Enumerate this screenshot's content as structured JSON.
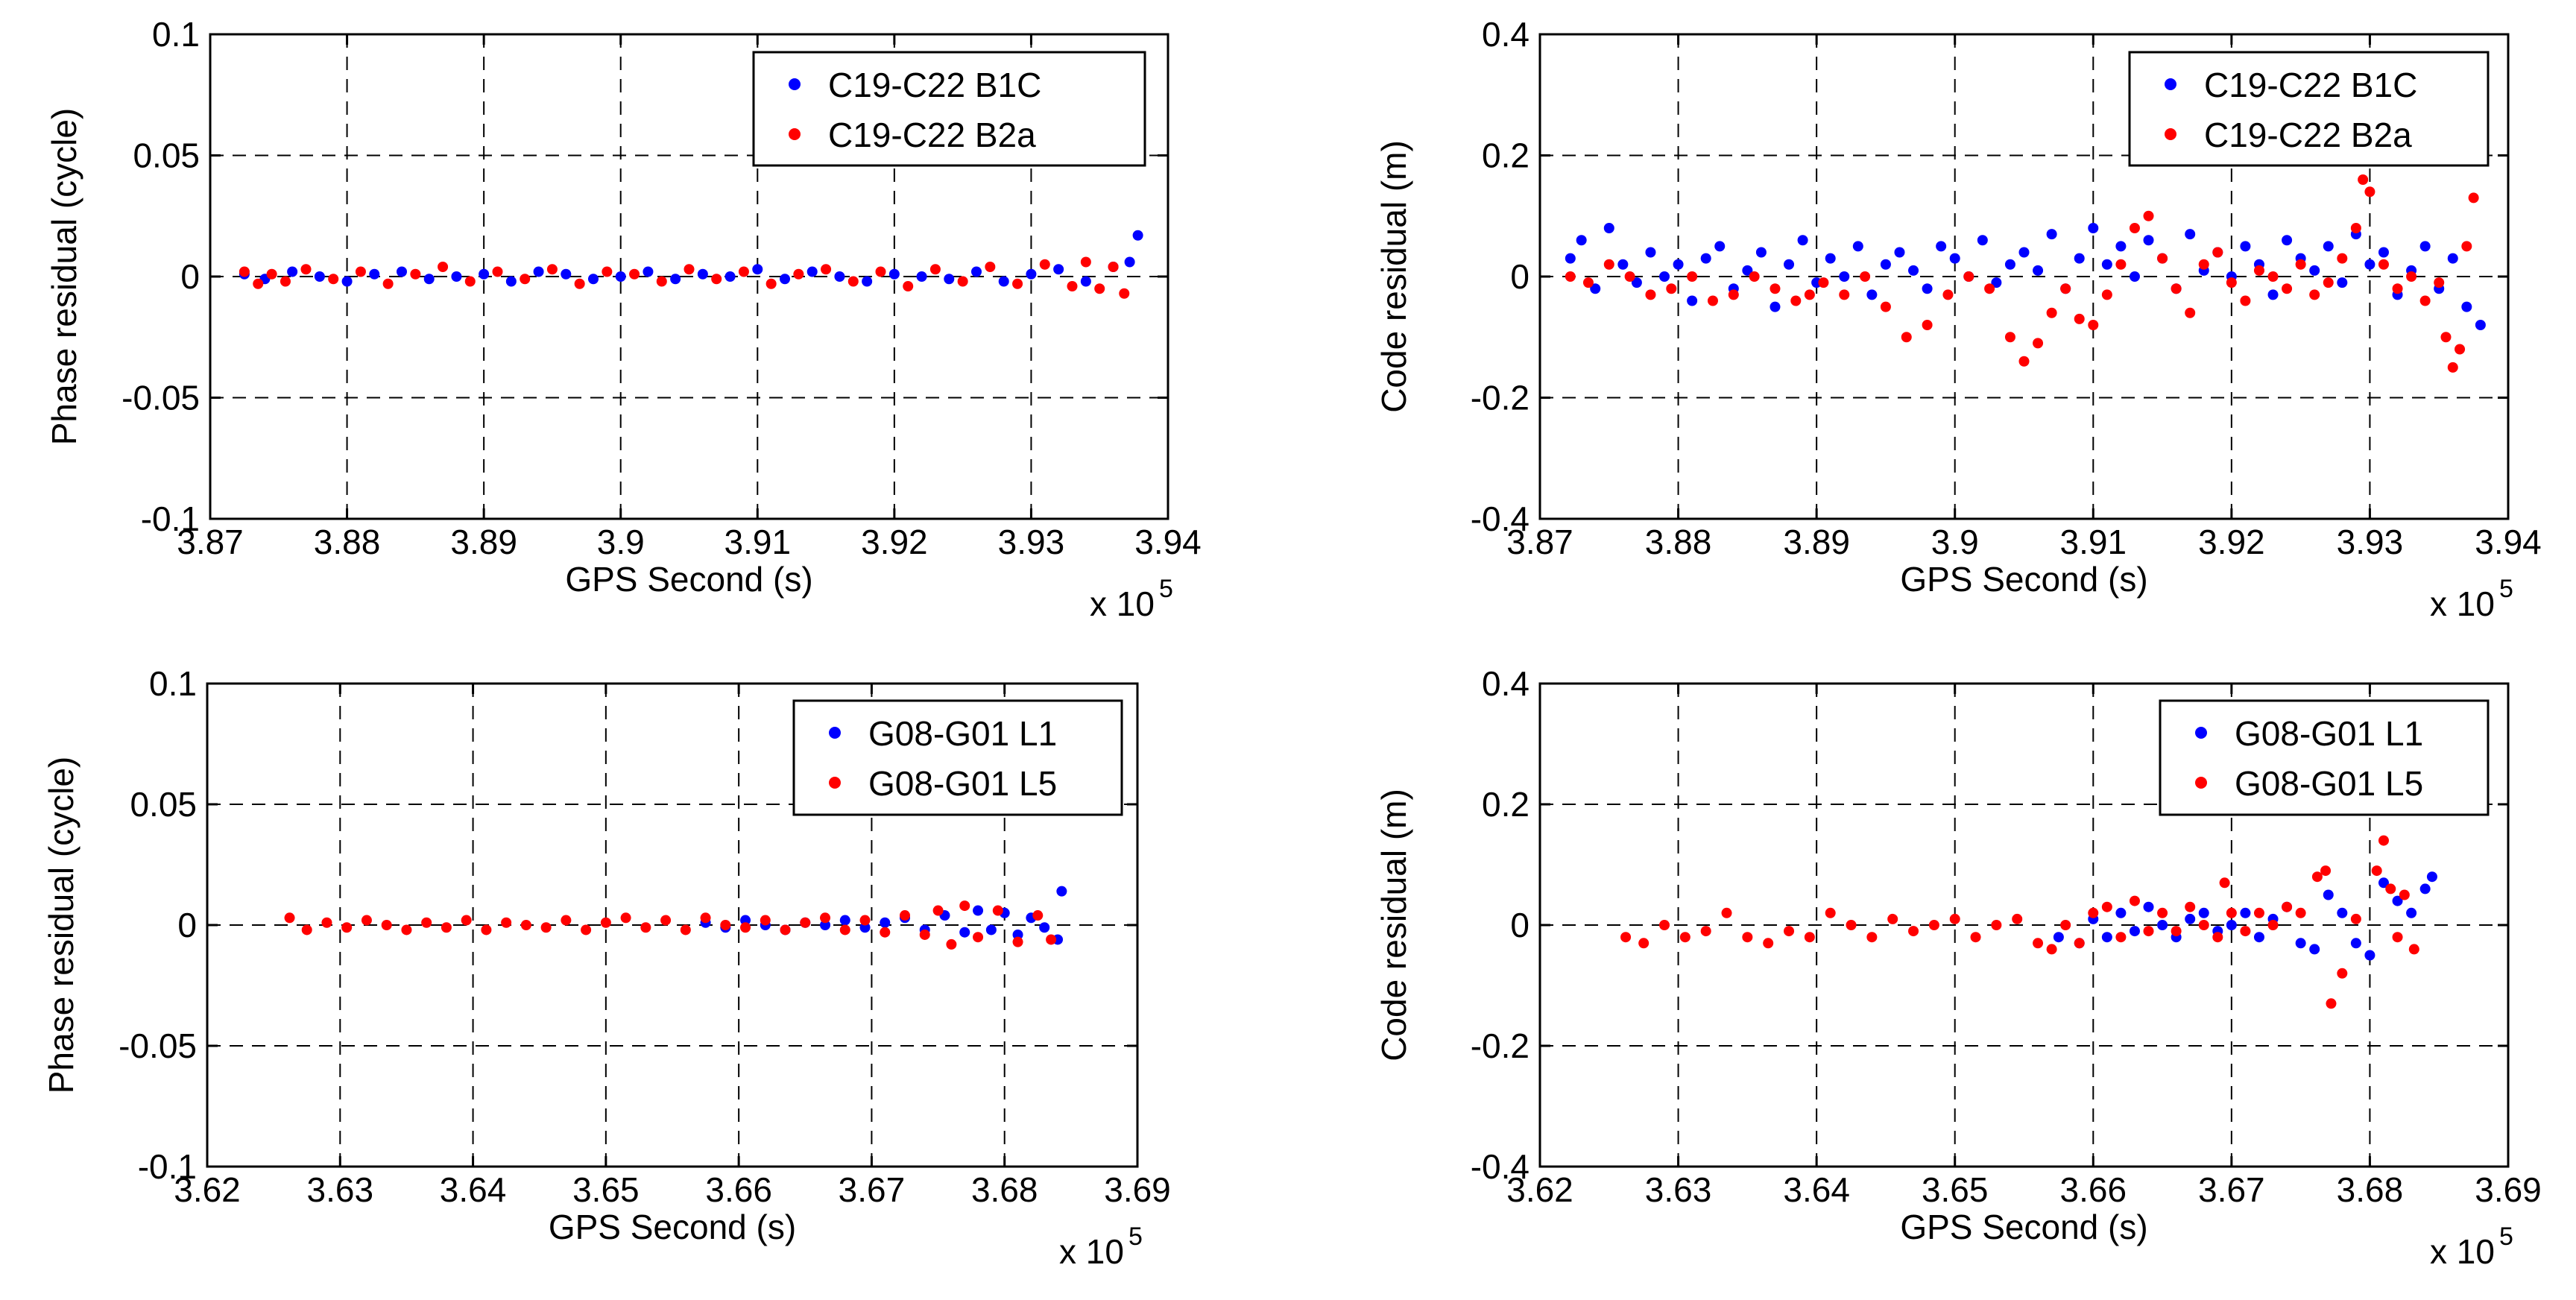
{
  "colors": {
    "series1": "#0000ff",
    "series2": "#ff0000",
    "axis": "#000000",
    "grid": "#000000",
    "background": "#ffffff"
  },
  "chart_data": [
    {
      "type": "scatter",
      "title": "",
      "xlabel": "GPS Second (s)",
      "ylabel": "Phase residual (cycle)",
      "xlim": [
        3.87,
        3.94
      ],
      "ylim": [
        -0.1,
        0.1
      ],
      "x_ticks": [
        3.87,
        3.88,
        3.89,
        3.9,
        3.91,
        3.92,
        3.93,
        3.94
      ],
      "x_tick_labels": [
        "3.87",
        "3.88",
        "3.89",
        "3.9",
        "3.91",
        "3.92",
        "3.93",
        "3.94"
      ],
      "y_ticks": [
        -0.1,
        -0.05,
        0,
        0.05,
        0.1
      ],
      "y_tick_labels": [
        "-0.1",
        "-0.05",
        "0",
        "0.05",
        "0.1"
      ],
      "x_multiplier": "x 10",
      "x_exponent": "5",
      "grid": true,
      "legend_position": "top-right",
      "series": [
        {
          "name": "C19-C22 B1C",
          "color": "#0000ff",
          "x": [
            3.8725,
            3.874,
            3.876,
            3.878,
            3.88,
            3.882,
            3.884,
            3.886,
            3.888,
            3.89,
            3.892,
            3.894,
            3.896,
            3.898,
            3.9,
            3.902,
            3.904,
            3.906,
            3.908,
            3.91,
            3.912,
            3.914,
            3.916,
            3.918,
            3.92,
            3.922,
            3.924,
            3.926,
            3.928,
            3.93,
            3.932,
            3.934,
            3.936,
            3.9372,
            3.9378
          ],
          "y": [
            0.001,
            -0.001,
            0.002,
            0.0,
            -0.002,
            0.001,
            0.002,
            -0.001,
            0.0,
            0.001,
            -0.002,
            0.002,
            0.001,
            -0.001,
            0.0,
            0.002,
            -0.001,
            0.001,
            0.0,
            0.003,
            -0.001,
            0.002,
            0.0,
            -0.002,
            0.001,
            0.0,
            -0.001,
            0.002,
            -0.002,
            0.001,
            0.003,
            -0.002,
            0.004,
            0.006,
            0.017
          ]
        },
        {
          "name": "C19-C22 B2a",
          "color": "#ff0000",
          "x": [
            3.8725,
            3.8735,
            3.8745,
            3.8755,
            3.877,
            3.879,
            3.881,
            3.883,
            3.885,
            3.887,
            3.889,
            3.891,
            3.893,
            3.895,
            3.897,
            3.899,
            3.901,
            3.903,
            3.905,
            3.907,
            3.909,
            3.911,
            3.913,
            3.915,
            3.917,
            3.919,
            3.921,
            3.923,
            3.925,
            3.927,
            3.929,
            3.931,
            3.933,
            3.934,
            3.935,
            3.936,
            3.9368
          ],
          "y": [
            0.002,
            -0.003,
            0.001,
            -0.002,
            0.003,
            -0.001,
            0.002,
            -0.003,
            0.001,
            0.004,
            -0.002,
            0.002,
            -0.001,
            0.003,
            -0.003,
            0.002,
            0.001,
            -0.002,
            0.003,
            -0.001,
            0.002,
            -0.003,
            0.001,
            0.003,
            -0.002,
            0.002,
            -0.004,
            0.003,
            -0.002,
            0.004,
            -0.003,
            0.005,
            -0.004,
            0.006,
            -0.005,
            0.004,
            -0.007
          ]
        }
      ]
    },
    {
      "type": "scatter",
      "title": "",
      "xlabel": "GPS Second (s)",
      "ylabel": "Code residual (m)",
      "xlim": [
        3.87,
        3.94
      ],
      "ylim": [
        -0.4,
        0.4
      ],
      "x_ticks": [
        3.87,
        3.88,
        3.89,
        3.9,
        3.91,
        3.92,
        3.93,
        3.94
      ],
      "x_tick_labels": [
        "3.87",
        "3.88",
        "3.89",
        "3.9",
        "3.91",
        "3.92",
        "3.93",
        "3.94"
      ],
      "y_ticks": [
        -0.4,
        -0.2,
        0,
        0.2,
        0.4
      ],
      "y_tick_labels": [
        "-0.4",
        "-0.2",
        "0",
        "0.2",
        "0.4"
      ],
      "x_multiplier": "x 10",
      "x_exponent": "5",
      "grid": true,
      "legend_position": "top-right",
      "series": [
        {
          "name": "C19-C22 B1C",
          "color": "#0000ff",
          "x": [
            3.8722,
            3.873,
            3.874,
            3.875,
            3.876,
            3.877,
            3.878,
            3.879,
            3.88,
            3.881,
            3.882,
            3.883,
            3.884,
            3.885,
            3.886,
            3.887,
            3.888,
            3.889,
            3.89,
            3.891,
            3.892,
            3.893,
            3.894,
            3.895,
            3.896,
            3.897,
            3.898,
            3.899,
            3.9,
            3.901,
            3.902,
            3.903,
            3.904,
            3.905,
            3.906,
            3.907,
            3.908,
            3.909,
            3.91,
            3.911,
            3.912,
            3.913,
            3.914,
            3.915,
            3.916,
            3.917,
            3.918,
            3.919,
            3.92,
            3.921,
            3.922,
            3.923,
            3.924,
            3.925,
            3.926,
            3.927,
            3.928,
            3.929,
            3.93,
            3.931,
            3.932,
            3.933,
            3.934,
            3.935,
            3.936,
            3.937,
            3.938
          ],
          "y": [
            0.03,
            0.06,
            -0.02,
            0.08,
            0.02,
            -0.01,
            0.04,
            0.0,
            0.02,
            -0.04,
            0.03,
            0.05,
            -0.02,
            0.01,
            0.04,
            -0.05,
            0.02,
            0.06,
            -0.01,
            0.03,
            0.0,
            0.05,
            -0.03,
            0.02,
            0.04,
            0.01,
            -0.02,
            0.05,
            0.03,
            0.0,
            0.06,
            -0.01,
            0.02,
            0.04,
            0.01,
            0.07,
            -0.02,
            0.03,
            0.08,
            0.02,
            0.05,
            0.0,
            0.06,
            0.03,
            -0.02,
            0.07,
            0.01,
            0.04,
            0.0,
            0.05,
            0.02,
            -0.03,
            0.06,
            0.03,
            0.01,
            0.05,
            -0.01,
            0.07,
            0.02,
            0.04,
            -0.03,
            0.01,
            0.05,
            -0.02,
            0.03,
            -0.05,
            -0.08
          ]
        },
        {
          "name": "C19-C22 B2a",
          "color": "#ff0000",
          "x": [
            3.8722,
            3.8735,
            3.875,
            3.8765,
            3.878,
            3.8795,
            3.881,
            3.8825,
            3.884,
            3.8855,
            3.887,
            3.8885,
            3.8895,
            3.8905,
            3.892,
            3.8935,
            3.895,
            3.8965,
            3.898,
            3.8995,
            3.901,
            3.9025,
            3.904,
            3.905,
            3.906,
            3.907,
            3.908,
            3.909,
            3.91,
            3.911,
            3.912,
            3.913,
            3.914,
            3.915,
            3.916,
            3.917,
            3.918,
            3.919,
            3.92,
            3.921,
            3.922,
            3.923,
            3.924,
            3.925,
            3.926,
            3.927,
            3.928,
            3.929,
            3.9295,
            3.93,
            3.931,
            3.932,
            3.933,
            3.934,
            3.935,
            3.9355,
            3.936,
            3.9365,
            3.937,
            3.9375
          ],
          "y": [
            0.0,
            -0.01,
            0.02,
            0.0,
            -0.03,
            -0.02,
            0.0,
            -0.04,
            -0.03,
            0.0,
            -0.02,
            -0.04,
            -0.03,
            -0.01,
            -0.03,
            0.0,
            -0.05,
            -0.1,
            -0.08,
            -0.03,
            0.0,
            -0.02,
            -0.1,
            -0.14,
            -0.11,
            -0.06,
            -0.02,
            -0.07,
            -0.08,
            -0.03,
            0.02,
            0.08,
            0.1,
            0.03,
            -0.02,
            -0.06,
            0.02,
            0.04,
            -0.01,
            -0.04,
            0.01,
            0.0,
            -0.02,
            0.02,
            -0.03,
            -0.01,
            0.03,
            0.08,
            0.16,
            0.14,
            0.02,
            -0.02,
            0.0,
            -0.04,
            -0.01,
            -0.1,
            -0.15,
            -0.12,
            0.05,
            0.13
          ]
        }
      ]
    },
    {
      "type": "scatter",
      "title": "",
      "xlabel": "GPS Second (s)",
      "ylabel": "Phase residual (cycle)",
      "xlim": [
        3.62,
        3.69
      ],
      "ylim": [
        -0.1,
        0.1
      ],
      "x_ticks": [
        3.62,
        3.63,
        3.64,
        3.65,
        3.66,
        3.67,
        3.68,
        3.69
      ],
      "x_tick_labels": [
        "3.62",
        "3.63",
        "3.64",
        "3.65",
        "3.66",
        "3.67",
        "3.68",
        "3.69"
      ],
      "y_ticks": [
        -0.1,
        -0.05,
        0,
        0.05,
        0.1
      ],
      "y_tick_labels": [
        "-0.1",
        "-0.05",
        "0",
        "0.05",
        "0.1"
      ],
      "x_multiplier": "x 10",
      "x_exponent": "5",
      "grid": true,
      "legend_position": "top-right",
      "series": [
        {
          "name": "G08-G01 L1",
          "color": "#0000ff",
          "x": [
            3.6575,
            3.659,
            3.6605,
            3.662,
            3.6635,
            3.665,
            3.6665,
            3.668,
            3.6695,
            3.671,
            3.6725,
            3.674,
            3.6755,
            3.677,
            3.678,
            3.679,
            3.68,
            3.681,
            3.682,
            3.683,
            3.684,
            3.6843
          ],
          "y": [
            0.001,
            -0.001,
            0.002,
            0.0,
            -0.002,
            0.001,
            0.0,
            0.002,
            -0.001,
            0.001,
            0.003,
            -0.002,
            0.004,
            -0.003,
            0.006,
            -0.002,
            0.005,
            -0.004,
            0.003,
            -0.001,
            -0.006,
            0.014
          ]
        },
        {
          "name": "G08-G01 L5",
          "color": "#ff0000",
          "x": [
            3.6262,
            3.6275,
            3.629,
            3.6305,
            3.632,
            3.6335,
            3.635,
            3.6365,
            3.638,
            3.6395,
            3.641,
            3.6425,
            3.644,
            3.6455,
            3.647,
            3.6485,
            3.65,
            3.6515,
            3.653,
            3.6545,
            3.656,
            3.6575,
            3.659,
            3.6605,
            3.662,
            3.6635,
            3.665,
            3.6665,
            3.668,
            3.6695,
            3.671,
            3.6725,
            3.674,
            3.675,
            3.676,
            3.677,
            3.678,
            3.6795,
            3.681,
            3.6825,
            3.6835
          ],
          "y": [
            0.003,
            -0.002,
            0.001,
            -0.001,
            0.002,
            0.0,
            -0.002,
            0.001,
            -0.001,
            0.002,
            -0.002,
            0.001,
            0.0,
            -0.001,
            0.002,
            -0.002,
            0.001,
            0.003,
            -0.001,
            0.002,
            -0.002,
            0.003,
            0.0,
            -0.001,
            0.002,
            -0.002,
            0.001,
            0.003,
            -0.002,
            0.002,
            -0.003,
            0.004,
            -0.004,
            0.006,
            -0.008,
            0.008,
            -0.005,
            0.006,
            -0.007,
            0.004,
            -0.006
          ]
        }
      ]
    },
    {
      "type": "scatter",
      "title": "",
      "xlabel": "GPS Second (s)",
      "ylabel": "Code residual (m)",
      "xlim": [
        3.62,
        3.69
      ],
      "ylim": [
        -0.4,
        0.4
      ],
      "x_ticks": [
        3.62,
        3.63,
        3.64,
        3.65,
        3.66,
        3.67,
        3.68,
        3.69
      ],
      "x_tick_labels": [
        "3.62",
        "3.63",
        "3.64",
        "3.65",
        "3.66",
        "3.67",
        "3.68",
        "3.69"
      ],
      "y_ticks": [
        -0.4,
        -0.2,
        0,
        0.2,
        0.4
      ],
      "y_tick_labels": [
        "-0.4",
        "-0.2",
        "0",
        "0.2",
        "0.4"
      ],
      "x_multiplier": "x 10",
      "x_exponent": "5",
      "grid": true,
      "legend_position": "top-right",
      "series": [
        {
          "name": "G08-G01 L1",
          "color": "#0000ff",
          "x": [
            3.6575,
            3.659,
            3.66,
            3.661,
            3.662,
            3.663,
            3.664,
            3.665,
            3.666,
            3.667,
            3.668,
            3.669,
            3.67,
            3.671,
            3.672,
            3.673,
            3.674,
            3.675,
            3.676,
            3.677,
            3.678,
            3.679,
            3.68,
            3.681,
            3.682,
            3.683,
            3.684,
            3.6845
          ],
          "y": [
            -0.02,
            -0.03,
            0.01,
            -0.02,
            0.02,
            -0.01,
            0.03,
            0.0,
            -0.02,
            0.01,
            0.02,
            -0.01,
            0.0,
            0.02,
            -0.02,
            0.01,
            0.03,
            -0.03,
            -0.04,
            0.05,
            0.02,
            -0.03,
            -0.05,
            0.07,
            0.04,
            0.02,
            0.06,
            0.08
          ]
        },
        {
          "name": "G08-G01 L5",
          "color": "#ff0000",
          "x": [
            3.6262,
            3.6275,
            3.629,
            3.6305,
            3.632,
            3.6335,
            3.635,
            3.6365,
            3.638,
            3.6395,
            3.641,
            3.6425,
            3.644,
            3.6455,
            3.647,
            3.6485,
            3.65,
            3.6515,
            3.653,
            3.6545,
            3.656,
            3.657,
            3.658,
            3.659,
            3.66,
            3.661,
            3.662,
            3.663,
            3.664,
            3.665,
            3.666,
            3.667,
            3.668,
            3.669,
            3.6695,
            3.67,
            3.671,
            3.672,
            3.673,
            3.674,
            3.675,
            3.6762,
            3.6768,
            3.6772,
            3.678,
            3.679,
            3.6805,
            3.681,
            3.6815,
            3.682,
            3.6825,
            3.6832
          ],
          "y": [
            -0.02,
            -0.03,
            0.0,
            -0.02,
            -0.01,
            0.02,
            -0.02,
            -0.03,
            -0.01,
            -0.02,
            0.02,
            0.0,
            -0.02,
            0.01,
            -0.01,
            0.0,
            0.01,
            -0.02,
            0.0,
            0.01,
            -0.03,
            -0.04,
            0.0,
            -0.03,
            0.02,
            0.03,
            -0.02,
            0.04,
            -0.01,
            0.02,
            -0.01,
            0.03,
            0.0,
            -0.02,
            0.07,
            0.02,
            -0.01,
            0.02,
            0.0,
            0.03,
            0.02,
            0.08,
            0.09,
            -0.13,
            -0.08,
            0.01,
            0.09,
            0.14,
            0.06,
            -0.02,
            0.05,
            -0.04
          ]
        }
      ]
    }
  ]
}
